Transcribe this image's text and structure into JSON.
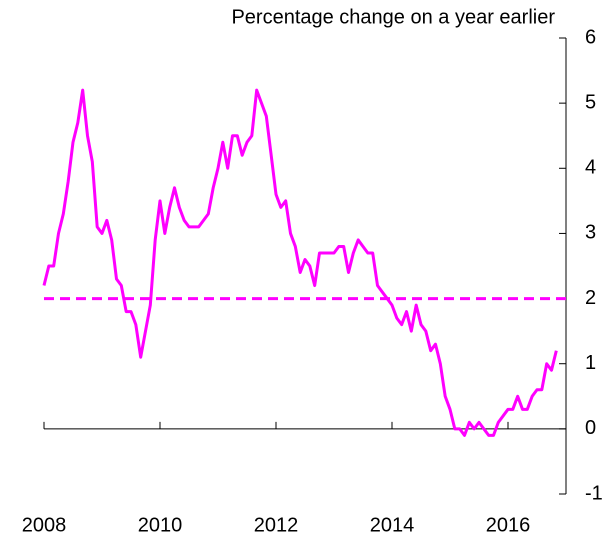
{
  "chart_data": {
    "type": "line",
    "title": "Percentage change on a year earlier",
    "x": [
      2008,
      2008.083,
      2008.167,
      2008.25,
      2008.333,
      2008.417,
      2008.5,
      2008.583,
      2008.667,
      2008.75,
      2008.833,
      2008.917,
      2009,
      2009.083,
      2009.167,
      2009.25,
      2009.333,
      2009.417,
      2009.5,
      2009.583,
      2009.667,
      2009.75,
      2009.833,
      2009.917,
      2010,
      2010.083,
      2010.167,
      2010.25,
      2010.333,
      2010.417,
      2010.5,
      2010.583,
      2010.667,
      2010.75,
      2010.833,
      2010.917,
      2011,
      2011.083,
      2011.167,
      2011.25,
      2011.333,
      2011.417,
      2011.5,
      2011.583,
      2011.667,
      2011.75,
      2011.833,
      2011.917,
      2012,
      2012.083,
      2012.167,
      2012.25,
      2012.333,
      2012.417,
      2012.5,
      2012.583,
      2012.667,
      2012.75,
      2012.833,
      2012.917,
      2013,
      2013.083,
      2013.167,
      2013.25,
      2013.333,
      2013.417,
      2013.5,
      2013.583,
      2013.667,
      2013.75,
      2013.833,
      2013.917,
      2014,
      2014.083,
      2014.167,
      2014.25,
      2014.333,
      2014.417,
      2014.5,
      2014.583,
      2014.667,
      2014.75,
      2014.833,
      2014.917,
      2015,
      2015.083,
      2015.167,
      2015.25,
      2015.333,
      2015.417,
      2015.5,
      2015.583,
      2015.667,
      2015.75,
      2015.833,
      2015.917,
      2016,
      2016.083,
      2016.167,
      2016.25,
      2016.333,
      2016.417,
      2016.5,
      2016.583,
      2016.667,
      2016.75,
      2016.833
    ],
    "series": [
      {
        "color": "#ff00ff",
        "values": [
          2.2,
          2.5,
          2.5,
          3.0,
          3.3,
          3.8,
          4.4,
          4.7,
          5.2,
          4.5,
          4.1,
          3.1,
          3.0,
          3.2,
          2.9,
          2.3,
          2.2,
          1.8,
          1.8,
          1.6,
          1.1,
          1.5,
          1.9,
          2.9,
          3.5,
          3.0,
          3.4,
          3.7,
          3.4,
          3.2,
          3.1,
          3.1,
          3.1,
          3.2,
          3.3,
          3.7,
          4.0,
          4.4,
          4.0,
          4.5,
          4.5,
          4.2,
          4.4,
          4.5,
          5.2,
          5.0,
          4.8,
          4.2,
          3.6,
          3.4,
          3.5,
          3.0,
          2.8,
          2.4,
          2.6,
          2.5,
          2.2,
          2.7,
          2.7,
          2.7,
          2.7,
          2.8,
          2.8,
          2.4,
          2.7,
          2.9,
          2.8,
          2.7,
          2.7,
          2.2,
          2.1,
          2.0,
          1.9,
          1.7,
          1.6,
          1.8,
          1.5,
          1.9,
          1.6,
          1.5,
          1.2,
          1.3,
          1.0,
          0.5,
          0.3,
          0.0,
          0.0,
          -0.1,
          0.1,
          0.0,
          0.1,
          0.0,
          -0.1,
          -0.1,
          0.1,
          0.2,
          0.3,
          0.3,
          0.5,
          0.3,
          0.3,
          0.5,
          0.6,
          0.6,
          1.0,
          0.9,
          1.2
        ]
      }
    ],
    "reference_line": {
      "value": 2,
      "color": "#ff00ff",
      "dashed": true
    },
    "xlim": [
      2008,
      2017
    ],
    "xticks": [
      2008,
      2010,
      2012,
      2014,
      2016
    ],
    "ylim": [
      -1,
      6
    ],
    "yticks": [
      -1,
      0,
      1,
      2,
      3,
      4,
      5,
      6
    ],
    "y_axis_side": "right"
  }
}
